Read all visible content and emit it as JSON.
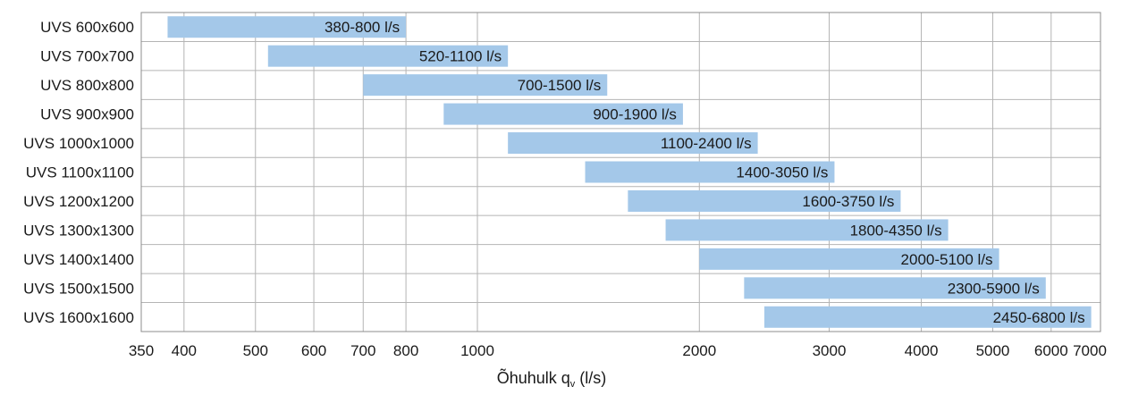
{
  "chart_data": {
    "type": "bar",
    "orientation": "horizontal-range",
    "x_scale": "log",
    "xlim": [
      350,
      7000
    ],
    "xlabel_main": "Õhuhulk q",
    "xlabel_sub": "v",
    "xlabel_unit": " (l/s)",
    "xticks": [
      350,
      400,
      500,
      600,
      700,
      800,
      1000,
      2000,
      3000,
      4000,
      5000,
      6000,
      7000
    ],
    "xtick_labels": [
      "350",
      "400",
      "500",
      "600",
      "700",
      "800",
      "1000",
      "2000",
      "3000",
      "4000",
      "5000",
      "6000",
      "7000"
    ],
    "grid": true,
    "bar_color": "#a4c8e9",
    "grid_color": "#b4b4b4",
    "categories": [
      "UVS 600x600",
      "UVS 700x700",
      "UVS 800x800",
      "UVS 900x900",
      "UVS 1000x1000",
      "UVS 1100x1100",
      "UVS 1200x1200",
      "UVS 1300x1300",
      "UVS 1400x1400",
      "UVS 1500x1500",
      "UVS 1600x1600"
    ],
    "ranges": [
      [
        380,
        800
      ],
      [
        520,
        1100
      ],
      [
        700,
        1500
      ],
      [
        900,
        1900
      ],
      [
        1100,
        2400
      ],
      [
        1400,
        3050
      ],
      [
        1600,
        3750
      ],
      [
        1800,
        4350
      ],
      [
        2000,
        5100
      ],
      [
        2300,
        5900
      ],
      [
        2450,
        6800
      ]
    ],
    "bar_labels": [
      "380-800 l/s",
      "520-1100 l/s",
      "700-1500 l/s",
      "900-1900 l/s",
      "1100-2400 l/s",
      "1400-3050 l/s",
      "1600-3750 l/s",
      "1800-4350 l/s",
      "2000-5100 l/s",
      "2300-5900 l/s",
      "2450-6800 l/s"
    ]
  }
}
